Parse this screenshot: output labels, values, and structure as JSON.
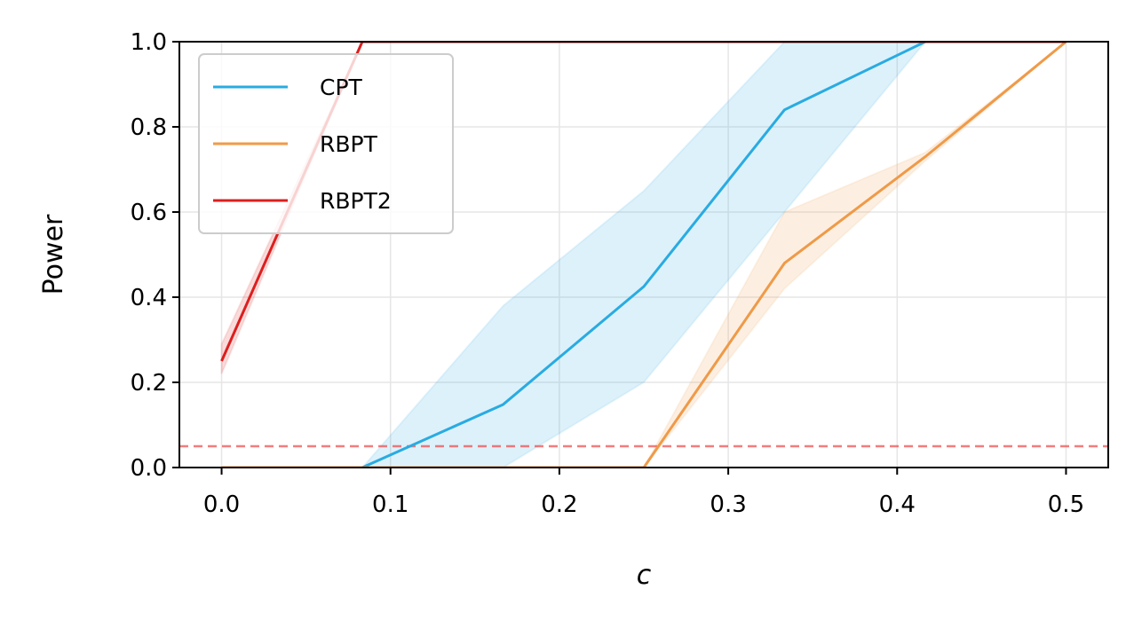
{
  "chart_data": {
    "type": "line",
    "xlabel": "c",
    "ylabel": "Power",
    "xlim": [
      -0.025,
      0.525
    ],
    "ylim": [
      0.0,
      1.0
    ],
    "xticks": [
      "0.0",
      "0.1",
      "0.2",
      "0.3",
      "0.4",
      "0.5"
    ],
    "yticks": [
      "0.0",
      "0.2",
      "0.4",
      "0.6",
      "0.8",
      "1.0"
    ],
    "grid": true,
    "legend_position": "top-left",
    "reference_line": {
      "y": 0.05,
      "color": "#ef4444",
      "style": "dashed"
    },
    "series": [
      {
        "name": "CPT",
        "color": "#29abe2",
        "x": [
          0.0,
          0.0833,
          0.1667,
          0.25,
          0.3333,
          0.4167,
          0.5
        ],
        "y": [
          0.0,
          0.0,
          0.148,
          0.425,
          0.84,
          1.0,
          1.0
        ],
        "lower": [
          0.0,
          0.0,
          0.0,
          0.2,
          0.6,
          1.0,
          1.0
        ],
        "upper": [
          0.0,
          0.0,
          0.38,
          0.65,
          1.0,
          1.0,
          1.0
        ]
      },
      {
        "name": "RBPT",
        "color": "#ef9a48",
        "x": [
          0.0,
          0.0833,
          0.1667,
          0.25,
          0.3333,
          0.4167,
          0.5
        ],
        "y": [
          0.0,
          0.0,
          0.0,
          0.0,
          0.48,
          0.73,
          1.0
        ],
        "lower": [
          0.0,
          0.0,
          0.0,
          0.0,
          0.42,
          0.72,
          1.0
        ],
        "upper": [
          0.0,
          0.0,
          0.0,
          0.0,
          0.6,
          0.74,
          1.0
        ]
      },
      {
        "name": "RBPT2",
        "color": "#dc1f1f",
        "x": [
          0.0,
          0.0833,
          0.1667,
          0.25,
          0.3333,
          0.4167,
          0.5
        ],
        "y": [
          0.25,
          1.0,
          1.0,
          1.0,
          1.0,
          1.0,
          1.0
        ],
        "lower": [
          0.22,
          1.0,
          1.0,
          1.0,
          1.0,
          1.0,
          1.0
        ],
        "upper": [
          0.29,
          1.0,
          1.0,
          1.0,
          1.0,
          1.0,
          1.0
        ]
      }
    ]
  }
}
